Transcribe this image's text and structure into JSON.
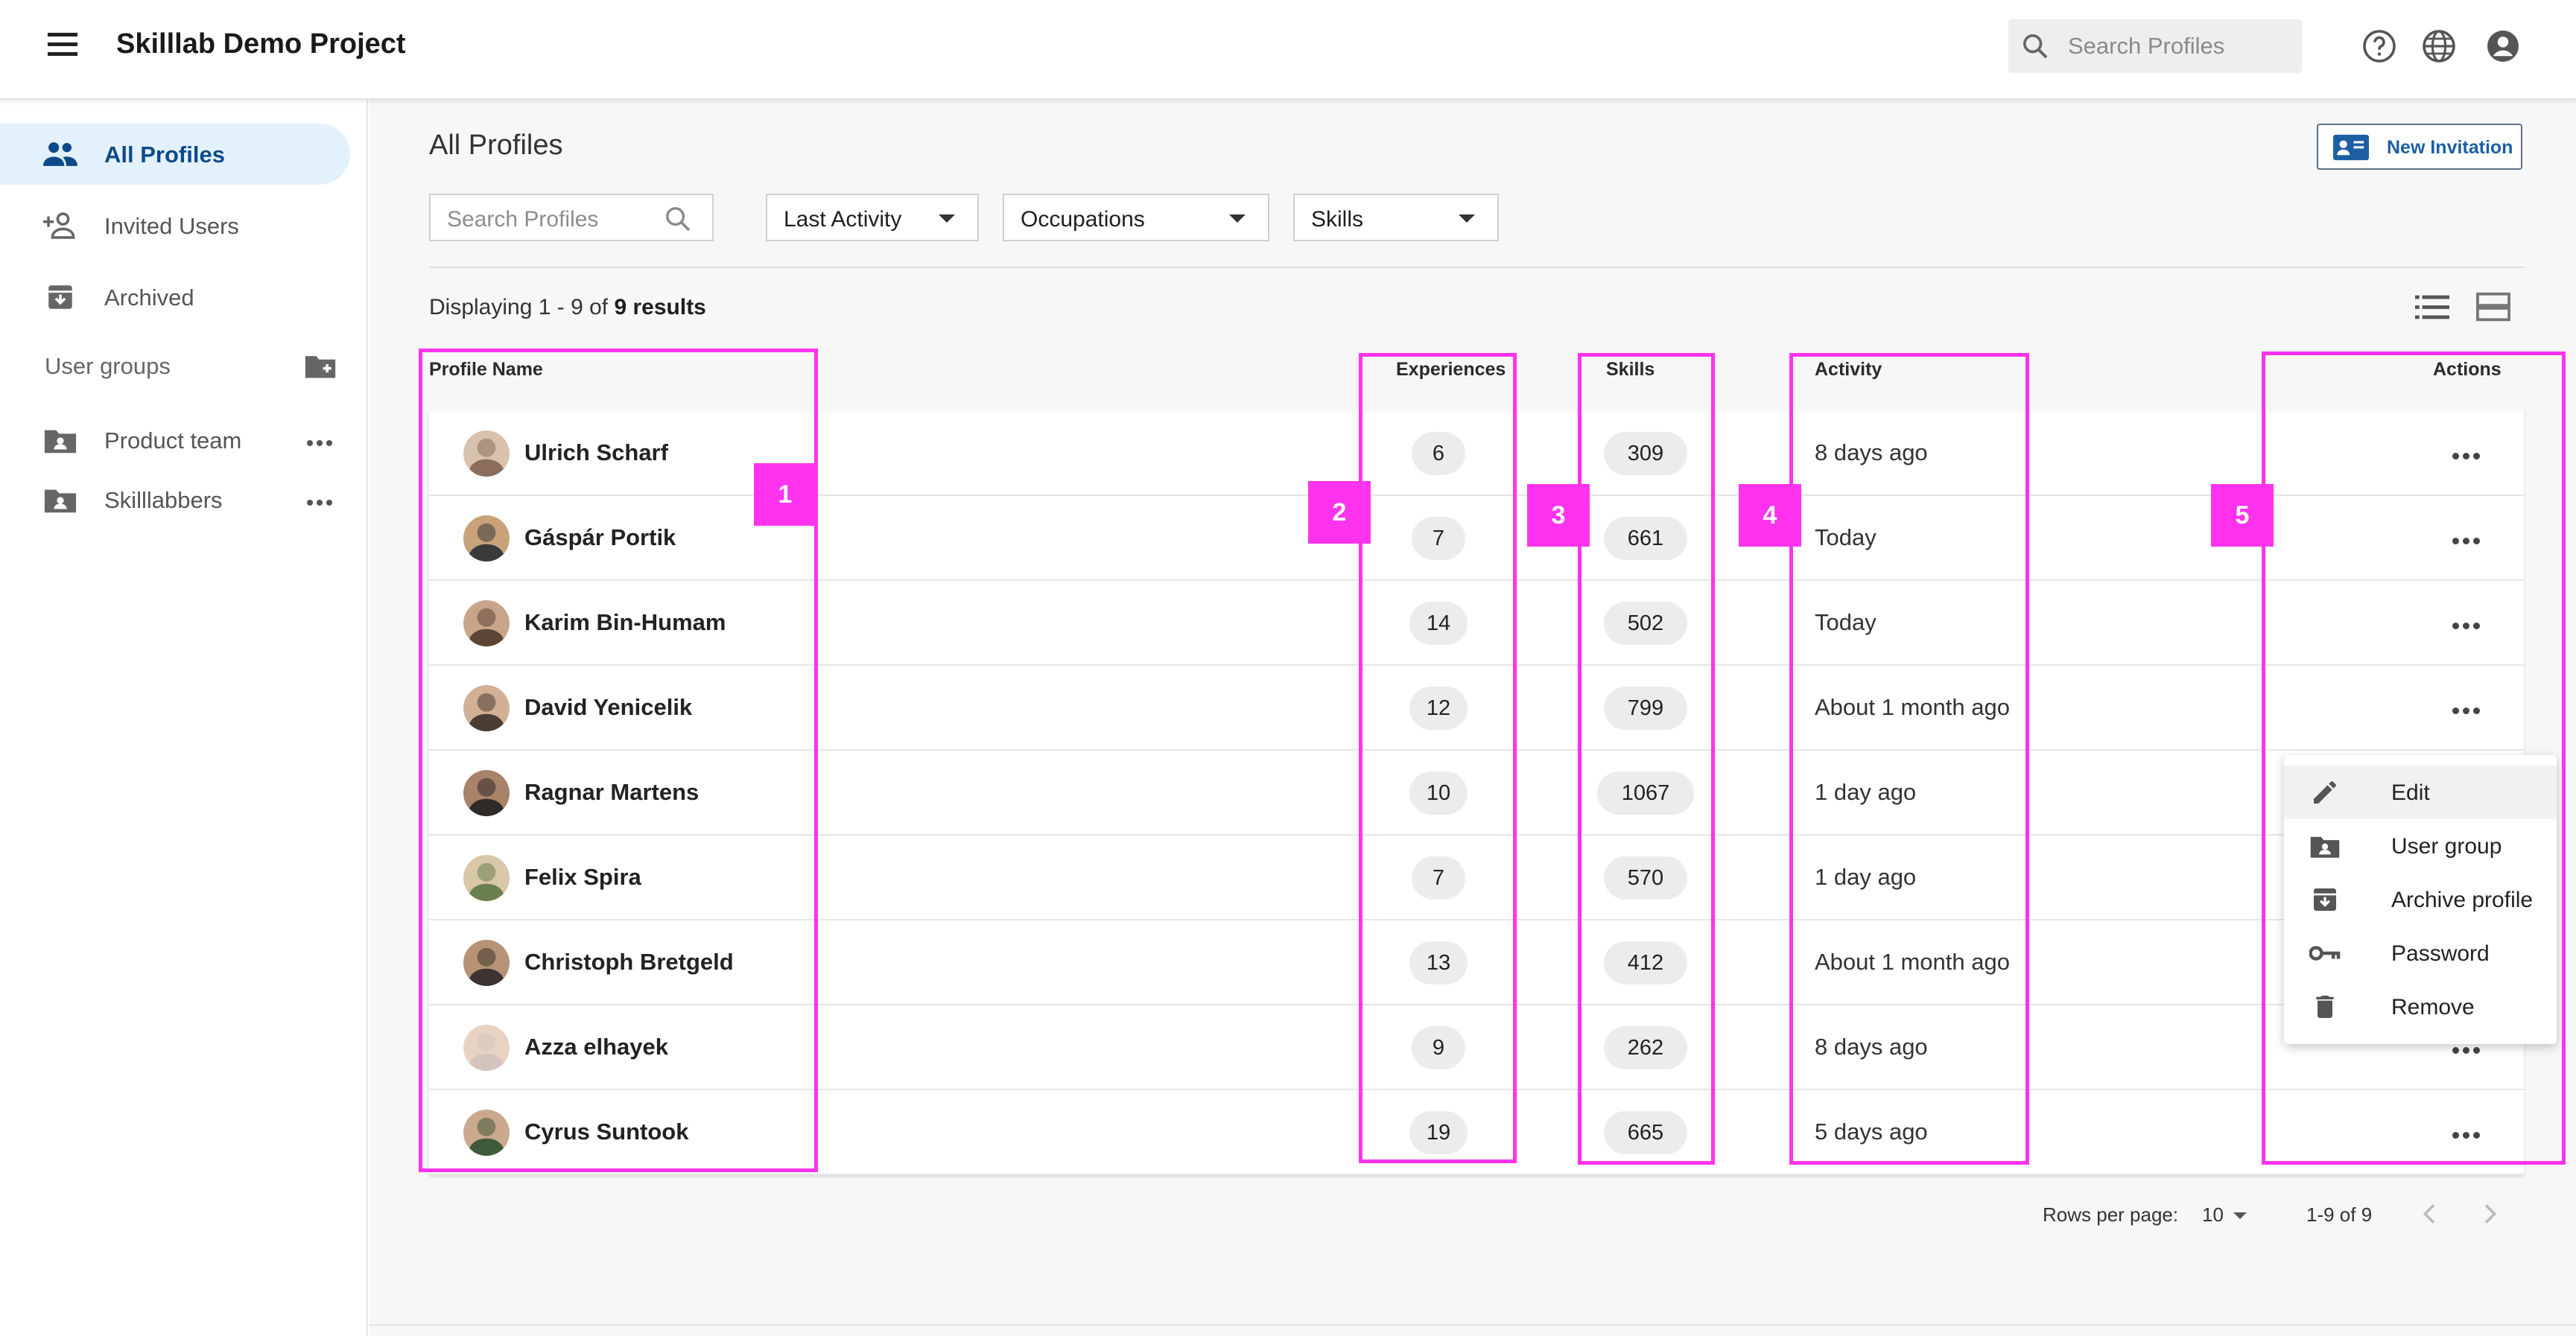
{
  "app": {
    "title": "Skilllab Demo Project"
  },
  "topbar": {
    "search_placeholder": "Search Profiles"
  },
  "sidebar": {
    "items": [
      {
        "label": "All Profiles"
      },
      {
        "label": "Invited Users"
      },
      {
        "label": "Archived"
      }
    ],
    "groups_header": "User groups",
    "groups": [
      {
        "label": "Product team"
      },
      {
        "label": "Skilllabbers"
      }
    ]
  },
  "main": {
    "title": "All Profiles",
    "new_invitation": "New Invitation",
    "filters": {
      "search_placeholder": "Search Profiles",
      "last_activity": "Last Activity",
      "occupations": "Occupations",
      "skills": "Skills"
    },
    "display_prefix": "Displaying 1 - 9 of",
    "display_total": "9 results",
    "columns": {
      "profile_name": "Profile Name",
      "experiences": "Experiences",
      "skills": "Skills",
      "activity": "Activity",
      "actions": "Actions"
    },
    "rows": [
      {
        "name": "Ulrich Scharf",
        "experiences": "6",
        "skills": "309",
        "activity": "8 days ago"
      },
      {
        "name": "Gáspár Portik",
        "experiences": "7",
        "skills": "661",
        "activity": "Today"
      },
      {
        "name": "Karim Bin-Humam",
        "experiences": "14",
        "skills": "502",
        "activity": "Today"
      },
      {
        "name": "David Yenicelik",
        "experiences": "12",
        "skills": "799",
        "activity": "About 1 month ago"
      },
      {
        "name": "Ragnar Martens",
        "experiences": "10",
        "skills": "1067",
        "activity": "1 day ago"
      },
      {
        "name": "Felix Spira",
        "experiences": "7",
        "skills": "570",
        "activity": "1 day ago"
      },
      {
        "name": "Christoph Bretgeld",
        "experiences": "13",
        "skills": "412",
        "activity": "About 1 month ago"
      },
      {
        "name": "Azza elhayek",
        "experiences": "9",
        "skills": "262",
        "activity": "8 days ago"
      },
      {
        "name": "Cyrus Suntook",
        "experiences": "19",
        "skills": "665",
        "activity": "5 days ago"
      }
    ],
    "pagination": {
      "rows_per_page_label": "Rows per page:",
      "rows_per_page": "10",
      "range": "1-9 of 9"
    }
  },
  "context_menu": {
    "items": [
      {
        "label": "Edit"
      },
      {
        "label": "User group"
      },
      {
        "label": "Archive profile"
      },
      {
        "label": "Password"
      },
      {
        "label": "Remove"
      }
    ]
  },
  "annotations": {
    "labels": [
      "1",
      "2",
      "3",
      "4",
      "5"
    ],
    "color": "#ff33ee"
  },
  "colors": {
    "accent": "#1d5fa3",
    "active_bg": "#e3f1fc",
    "chip_bg": "#ececec"
  }
}
